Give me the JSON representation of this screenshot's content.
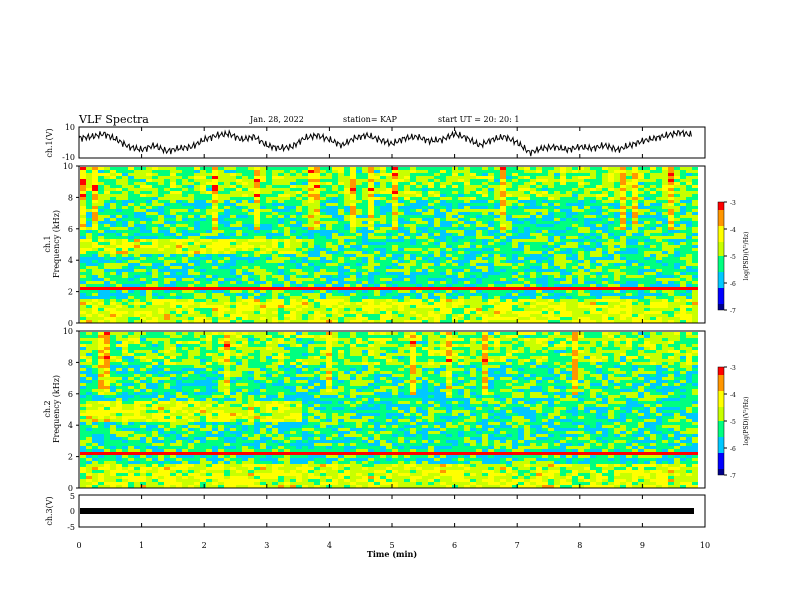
{
  "header": {
    "title": "VLF Spectra",
    "date": "Jan. 28, 2022",
    "station": "station= KAP",
    "start_ut": "start  UT =   20: 20: 1"
  },
  "colors": {
    "waveform": "#000000",
    "colormap": [
      "#00008b",
      "#0000ff",
      "#00c8ff",
      "#00ff80",
      "#c8ff00",
      "#ffff00",
      "#ff9600",
      "#ff0000",
      "#ffffff"
    ]
  },
  "chart_data": [
    {
      "type": "line",
      "name": "ch1_waveform",
      "ylabel": "ch.1(V)",
      "ylim": [
        -10,
        10
      ],
      "yticks": [
        "10",
        "-10"
      ],
      "xlim": [
        0,
        10
      ],
      "x": [
        0,
        0.2,
        0.4,
        0.6,
        0.8,
        1.0,
        1.2,
        1.4,
        1.6,
        1.8,
        2.0,
        2.2,
        2.4,
        2.6,
        2.8,
        3.0,
        3.2,
        3.4,
        3.6,
        3.8,
        4.0,
        4.2,
        4.4,
        4.6,
        4.8,
        5.0,
        5.2,
        5.4,
        5.6,
        5.8,
        6.0,
        6.2,
        6.4,
        6.6,
        6.8,
        7.0,
        7.2,
        7.4,
        7.6,
        7.8,
        8.0,
        8.2,
        8.4,
        8.6,
        8.8,
        9.0,
        9.2,
        9.4,
        9.6,
        9.8
      ],
      "values": [
        3,
        4,
        6,
        2,
        -3,
        -5,
        -2,
        -6,
        -4,
        -3,
        2,
        5,
        6,
        2,
        4,
        -2,
        -4,
        -3,
        3,
        5,
        2,
        -2,
        3,
        5,
        2,
        -1,
        3,
        4,
        1,
        2,
        6,
        3,
        -2,
        2,
        4,
        0,
        -7,
        -4,
        -3,
        -5,
        -3,
        -4,
        -2,
        -5,
        -2,
        1,
        3,
        5,
        7,
        5
      ]
    },
    {
      "type": "heatmap",
      "name": "ch1_spectrogram",
      "ylabel": "ch.1\nFrequency (kHz)",
      "ylim": [
        0,
        10
      ],
      "yticks": [
        "0",
        "2",
        "4",
        "6",
        "8",
        "10"
      ],
      "xlim": [
        0,
        10
      ],
      "colorbar": {
        "label": "log(PSD)(V²/Hz)",
        "range": [
          -7,
          -3
        ],
        "ticks": [
          "-3",
          "-4",
          "-5",
          "-6",
          "-7"
        ]
      }
    },
    {
      "type": "heatmap",
      "name": "ch2_spectrogram",
      "ylabel": "ch.2\nFrequency (kHz)",
      "ylim": [
        0,
        10
      ],
      "yticks": [
        "0",
        "2",
        "4",
        "6",
        "8",
        "10"
      ],
      "xlim": [
        0,
        10
      ],
      "colorbar": {
        "label": "log(PSD)(V²/Hz)",
        "range": [
          -7,
          -3
        ],
        "ticks": [
          "-3",
          "-4",
          "-5",
          "-6",
          "-7"
        ]
      }
    },
    {
      "type": "line",
      "name": "ch3_waveform",
      "ylabel": "ch.3(V)",
      "ylim": [
        -5,
        5
      ],
      "yticks": [
        "5",
        "0",
        "-5"
      ],
      "xlim": [
        0,
        10
      ],
      "values_constant": -1.5
    }
  ],
  "xaxis": {
    "label": "Time (min)",
    "ticks": [
      "0",
      "1",
      "2",
      "3",
      "4",
      "5",
      "6",
      "7",
      "8",
      "9",
      "10"
    ]
  }
}
